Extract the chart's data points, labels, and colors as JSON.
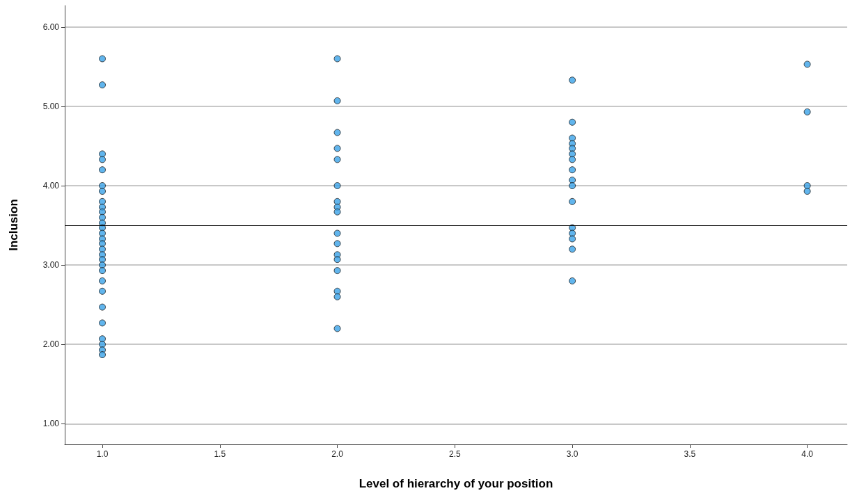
{
  "chart_data": {
    "type": "scatter",
    "xlabel": "Level of hierarchy of your position",
    "ylabel": "Inclusion",
    "xlim": [
      0.84,
      4.17
    ],
    "ylim": [
      0.74,
      6.27
    ],
    "xticks": [
      {
        "value": 1,
        "label": "1.0"
      },
      {
        "value": 1.5,
        "label": "1.5"
      },
      {
        "value": 2,
        "label": "2.0"
      },
      {
        "value": 2.5,
        "label": "2.5"
      },
      {
        "value": 3,
        "label": "3.0"
      },
      {
        "value": 3.5,
        "label": "3.5"
      },
      {
        "value": 4,
        "label": "4.0"
      }
    ],
    "yticks": [
      {
        "value": 1,
        "label": "1.00"
      },
      {
        "value": 2,
        "label": "2.00"
      },
      {
        "value": 3,
        "label": "3.00"
      },
      {
        "value": 4,
        "label": "4.00"
      },
      {
        "value": 5,
        "label": "5.00"
      },
      {
        "value": 6,
        "label": "6.00"
      }
    ],
    "grid": "y",
    "marker": "circle",
    "ref_lines": [
      {
        "axis": "y",
        "value": 3.5,
        "color": "#000000"
      }
    ],
    "series": [
      {
        "color": "#3aa3e9",
        "x": [
          1,
          1,
          1,
          1,
          1,
          1,
          1,
          1,
          1,
          1,
          1,
          1,
          1,
          1,
          1,
          1,
          1,
          1,
          1,
          1,
          1,
          1,
          1,
          1,
          1,
          1,
          1,
          1,
          1,
          2,
          2,
          2,
          2,
          2,
          2,
          2,
          2,
          2,
          2,
          2,
          2,
          2,
          2,
          2,
          2,
          2,
          3,
          3,
          3,
          3,
          3,
          3,
          3,
          3,
          3,
          3,
          3,
          3,
          3,
          3,
          3,
          3,
          4,
          4,
          4,
          4
        ],
        "values": [
          5.6,
          5.27,
          4.4,
          4.33,
          4.2,
          4.0,
          3.93,
          3.8,
          3.73,
          3.67,
          3.6,
          3.53,
          3.47,
          3.4,
          3.33,
          3.27,
          3.2,
          3.13,
          3.07,
          3.0,
          2.93,
          2.8,
          2.67,
          2.47,
          2.27,
          2.07,
          2.0,
          1.93,
          1.87,
          5.6,
          5.07,
          4.67,
          4.47,
          4.33,
          4.0,
          3.8,
          3.73,
          3.67,
          3.4,
          3.27,
          3.13,
          3.07,
          2.93,
          2.67,
          2.6,
          2.2,
          5.33,
          4.8,
          4.6,
          4.53,
          4.47,
          4.4,
          4.33,
          4.2,
          4.07,
          4.0,
          3.8,
          3.47,
          3.4,
          3.33,
          3.2,
          2.8,
          5.53,
          4.93,
          4.0,
          3.93
        ]
      }
    ]
  }
}
